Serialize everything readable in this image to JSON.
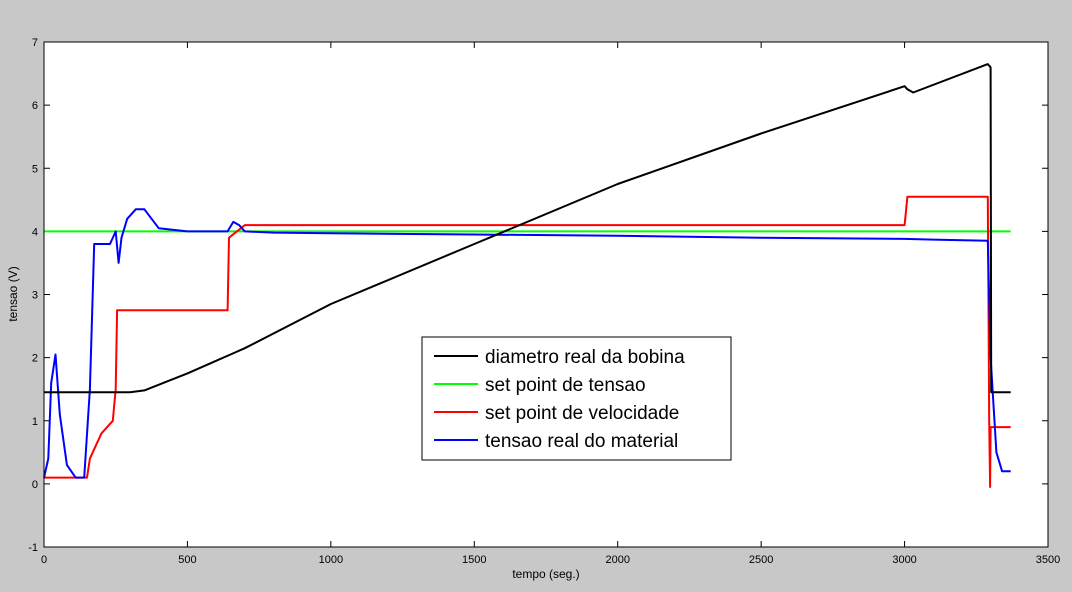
{
  "chart_data": {
    "type": "line",
    "title": "",
    "xlabel": "tempo (seg.)",
    "ylabel": "tensao (V)",
    "xlim": [
      0,
      3500
    ],
    "ylim": [
      -1,
      7
    ],
    "xticks": [
      0,
      500,
      1000,
      1500,
      2000,
      2500,
      3000,
      3500
    ],
    "yticks": [
      -1,
      0,
      1,
      2,
      3,
      4,
      5,
      6,
      7
    ],
    "grid": false,
    "legend_position": "center",
    "colors": {
      "figure_background": "#c8c8c8",
      "axes_background": "#ffffff"
    },
    "series": [
      {
        "name": "diametro real da bobina",
        "color": "#000000",
        "x": [
          0,
          150,
          300,
          350,
          500,
          600,
          650,
          700,
          1000,
          1500,
          2000,
          2500,
          3000,
          3010,
          3030,
          3290,
          3300,
          3302,
          3310,
          3370
        ],
        "y": [
          1.45,
          1.45,
          1.45,
          1.48,
          1.75,
          1.95,
          2.05,
          2.15,
          2.85,
          3.8,
          4.75,
          5.55,
          6.3,
          6.25,
          6.2,
          6.65,
          6.6,
          1.45,
          1.45,
          1.45
        ]
      },
      {
        "name": "set point de tensao",
        "color": "#00ff00",
        "x": [
          0,
          50,
          100,
          150,
          200,
          300,
          500,
          1000,
          1500,
          2000,
          2500,
          3000,
          3300,
          3370
        ],
        "y": [
          4.0,
          4.0,
          4.0,
          4.0,
          4.0,
          4.0,
          4.0,
          4.0,
          4.0,
          4.0,
          4.0,
          4.0,
          4.0,
          4.0
        ]
      },
      {
        "name": "set point de velocidade",
        "color": "#ff0000",
        "x": [
          0,
          40,
          150,
          160,
          200,
          240,
          250,
          255,
          600,
          640,
          645,
          700,
          1000,
          1500,
          2000,
          2500,
          3000,
          3010,
          3290,
          3295,
          3298,
          3300,
          3310,
          3370
        ],
        "y": [
          0.1,
          0.1,
          0.1,
          0.4,
          0.8,
          1.0,
          1.5,
          2.75,
          2.75,
          2.75,
          3.9,
          4.1,
          4.1,
          4.1,
          4.1,
          4.1,
          4.1,
          4.55,
          4.55,
          1.0,
          -0.05,
          0.9,
          0.9,
          0.9
        ]
      },
      {
        "name": "tensao real do material",
        "color": "#0000ff",
        "x": [
          0,
          15,
          25,
          40,
          55,
          80,
          110,
          140,
          160,
          175,
          200,
          230,
          250,
          260,
          270,
          290,
          320,
          350,
          400,
          500,
          640,
          660,
          680,
          700,
          800,
          1000,
          1500,
          2000,
          2500,
          3000,
          3100,
          3290,
          3300,
          3320,
          3340,
          3370
        ],
        "y": [
          0.1,
          0.4,
          1.6,
          2.05,
          1.1,
          0.3,
          0.1,
          0.1,
          1.5,
          3.8,
          3.8,
          3.8,
          4.0,
          3.5,
          3.9,
          4.2,
          4.35,
          4.35,
          4.05,
          4.0,
          4.0,
          4.15,
          4.1,
          4.0,
          3.98,
          3.97,
          3.95,
          3.93,
          3.9,
          3.88,
          3.87,
          3.85,
          2.0,
          0.5,
          0.2,
          0.2
        ]
      }
    ]
  }
}
